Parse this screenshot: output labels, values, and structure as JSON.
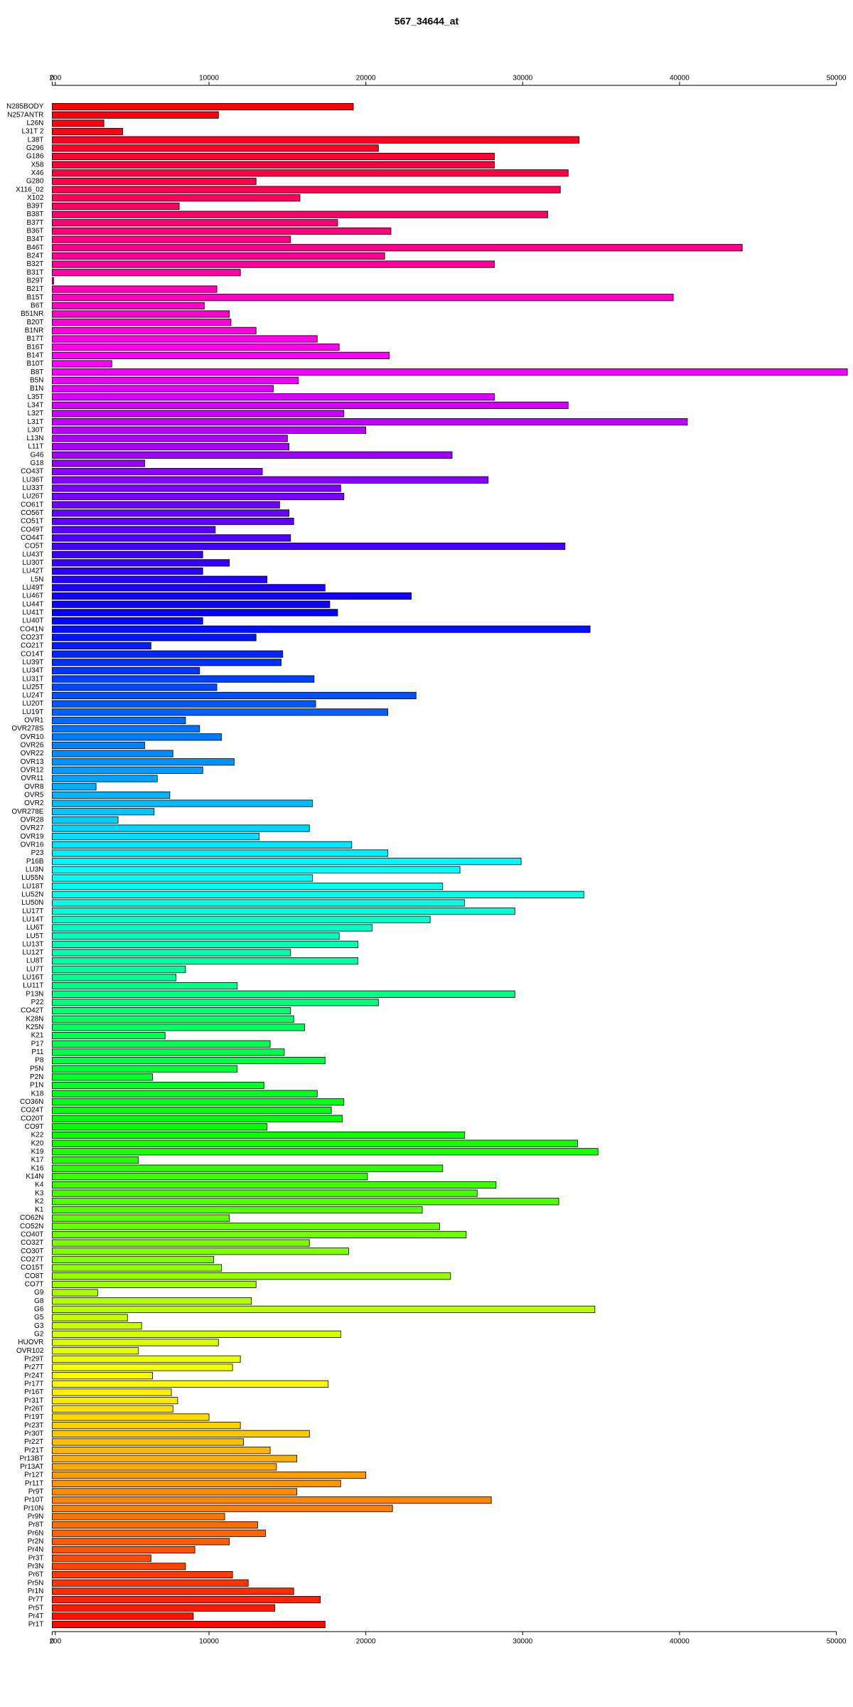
{
  "chart_data": {
    "type": "barh",
    "title": "567_34644_at",
    "categories": [
      "N285BODY",
      "N257ANTR",
      "L26N",
      "L31T 2",
      "L38T",
      "G296",
      "G186",
      "X58",
      "X46",
      "G280",
      "X116_02",
      "X102",
      "B39T",
      "B38T",
      "B37T",
      "B36T",
      "B34T",
      "B46T",
      "B24T",
      "B32T",
      "B31T",
      "B29T",
      "B21T",
      "B15T",
      "B6T",
      "B51NR",
      "B20T",
      "B1NR",
      "B17T",
      "B16T",
      "B14T",
      "B10T",
      "B8T",
      "B5N",
      "B1N",
      "L35T",
      "L34T",
      "L32T",
      "L31T",
      "L30T",
      "L13N",
      "L11T",
      "G46",
      "G18",
      "CO43T",
      "LU36T",
      "LU33T",
      "LU26T",
      "CO61T",
      "CO56T",
      "CO51T",
      "CO49T",
      "CO44T",
      "CO5T",
      "LU43T",
      "LU30T",
      "LU42T",
      "L5N",
      "LU49T",
      "LU46T",
      "LU44T",
      "LU41T",
      "LU40T",
      "CO41N",
      "CO23T",
      "CO21T",
      "CO14T",
      "LU39T",
      "LU34T",
      "LU31T",
      "LU25T",
      "LU24T",
      "LU20T",
      "LU19T",
      "OVR1",
      "OVR278S",
      "OVR10",
      "OVR26",
      "OVR22",
      "OVR13",
      "OVR12",
      "OVR11",
      "OVR8",
      "OVR5",
      "OVR2",
      "OVR278E",
      "OVR28",
      "OVR27",
      "OVR19",
      "OVR16",
      "P23",
      "P16B",
      "LU3N",
      "LU55N",
      "LU18T",
      "LU52N",
      "LU50N",
      "LU17T",
      "LU14T",
      "LU6T",
      "LU5T",
      "LU13T",
      "LU12T",
      "LU8T",
      "LU7T",
      "LU16T",
      "LU11T",
      "P13N",
      "P22",
      "CO42T",
      "K28N",
      "K25N",
      "K21",
      "P17",
      "P11",
      "P8",
      "P5N",
      "P2N",
      "P1N",
      "K18",
      "CO36N",
      "CO24T",
      "CO20T",
      "CO9T",
      "K22",
      "K20",
      "K19",
      "K17",
      "K16",
      "K14N",
      "K4",
      "K3",
      "K2",
      "K1",
      "CO62N",
      "CO52N",
      "CO40T",
      "CO32T",
      "CO30T",
      "CO27T",
      "CO15T",
      "CO8T",
      "CO7T",
      "G9",
      "G8",
      "G6",
      "G5",
      "G3",
      "G2",
      "HUOVR",
      "OVR102",
      "Pr29T",
      "Pr27T",
      "Pr24T",
      "Pr17T",
      "Pr16T",
      "Pr31T",
      "Pr26T",
      "Pr19T",
      "Pr23T",
      "Pr30T",
      "Pr22T",
      "Pr21T",
      "Pr13BT",
      "Pr13AT",
      "Pr12T",
      "Pr11T",
      "Pr9T",
      "Pr10T",
      "Pr10N",
      "Pr9N",
      "Pr8T",
      "Pr6N",
      "Pr2N",
      "Pr4N",
      "Pr3T",
      "Pr3N",
      "Pr6T",
      "Pr5N",
      "Pr1N",
      "Pr7T",
      "Pr5T",
      "Pr4T",
      "Pr1T"
    ],
    "values": [
      19200,
      10600,
      3300,
      4500,
      33600,
      20800,
      28200,
      28200,
      32900,
      13000,
      32400,
      15800,
      8100,
      31600,
      18200,
      21600,
      15200,
      44000,
      21200,
      28200,
      12000,
      100,
      10500,
      39600,
      9700,
      11300,
      11400,
      13000,
      16900,
      18300,
      21500,
      3800,
      50700,
      15700,
      14100,
      28200,
      32900,
      18600,
      40500,
      20000,
      15000,
      15100,
      25500,
      5900,
      13400,
      27800,
      18400,
      18600,
      14500,
      15100,
      15400,
      10400,
      15200,
      32700,
      9600,
      11300,
      9600,
      13700,
      17400,
      22900,
      17700,
      18200,
      9600,
      34300,
      13000,
      6300,
      14700,
      14600,
      9400,
      16700,
      10500,
      23200,
      16800,
      21400,
      8500,
      9400,
      10800,
      5900,
      7700,
      11600,
      9600,
      6700,
      2800,
      7500,
      16600,
      6500,
      4200,
      16400,
      13200,
      19100,
      21400,
      29900,
      26000,
      16600,
      24900,
      33900,
      26300,
      29500,
      24100,
      20400,
      18300,
      19500,
      15200,
      19500,
      8500,
      7900,
      11800,
      29500,
      20800,
      15200,
      15400,
      16100,
      7200,
      13900,
      14800,
      17400,
      11800,
      6400,
      13500,
      16900,
      18600,
      17800,
      18500,
      13700,
      26300,
      33500,
      34800,
      5500,
      24900,
      20100,
      28300,
      27100,
      32300,
      23600,
      11300,
      24700,
      26400,
      16400,
      18900,
      10300,
      10800,
      25400,
      13000,
      2900,
      12700,
      34600,
      4800,
      5700,
      18400,
      10600,
      5500,
      12000,
      11500,
      6400,
      17600,
      7600,
      8000,
      7700,
      10000,
      12000,
      16400,
      12200,
      13900,
      15600,
      14300,
      20000,
      18400,
      15600,
      28000,
      21700,
      11000,
      13100,
      13600,
      11300,
      9100,
      6300,
      8500,
      11500,
      12500,
      15400,
      17100,
      14200,
      9000,
      17400
    ],
    "color": "rainbow",
    "xlim": [
      0,
      50000
    ],
    "xticks": [
      0,
      200,
      10000,
      20000,
      30000,
      40000,
      50000
    ]
  }
}
